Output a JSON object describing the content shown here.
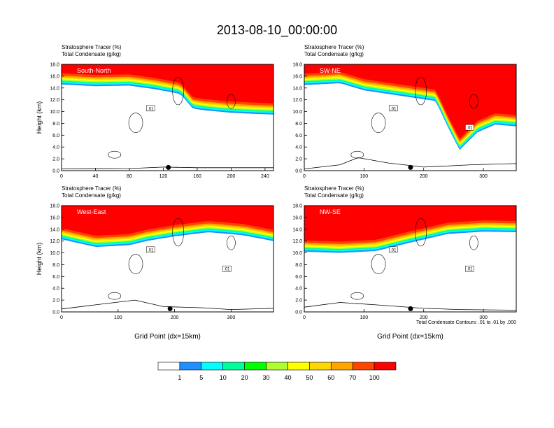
{
  "figure": {
    "title": "2013-08-10_00:00:00",
    "contour_info": "Total Condensate Contours: .01 to .01 by .000"
  },
  "colors": {
    "scale": [
      "#ffffff",
      "#1e90ff",
      "#00ffff",
      "#00ff99",
      "#00ff00",
      "#adff2f",
      "#ffff00",
      "#ffd700",
      "#ffa500",
      "#ff4500",
      "#ff0000"
    ]
  },
  "colorbar": {
    "labels": [
      "1",
      "5",
      "10",
      "20",
      "30",
      "40",
      "50",
      "60",
      "70",
      "100"
    ]
  },
  "chart_data": [
    {
      "type": "heatmap",
      "label": "South-North",
      "title_line1": "Stratosphere Tracer   (%)",
      "title_line2": "Total Condensate   (g/kg)",
      "ylabel": "Height (km)",
      "xlim": [
        0,
        250
      ],
      "ylim": [
        0,
        18
      ],
      "xticks": [
        0,
        40,
        80,
        120,
        160,
        200,
        240
      ],
      "yticks": [
        "0.0",
        "2.0",
        "4.0",
        "6.0",
        "8.0",
        "10.0",
        "12.0",
        "14.0",
        "16.0",
        "18.0"
      ],
      "tropopause_km": [
        [
          0,
          14.6
        ],
        [
          40,
          14.3
        ],
        [
          80,
          14.4
        ],
        [
          110,
          13.8
        ],
        [
          140,
          13.0
        ],
        [
          155,
          10.5
        ],
        [
          170,
          10.2
        ],
        [
          200,
          9.8
        ],
        [
          230,
          9.6
        ],
        [
          250,
          9.5
        ]
      ],
      "contour_labels": [
        ".01"
      ],
      "terrain_km": [
        [
          0,
          0.3
        ],
        [
          80,
          0.35
        ],
        [
          120,
          0.6
        ],
        [
          160,
          0.5
        ],
        [
          250,
          0.5
        ]
      ],
      "marker_x": 126
    },
    {
      "type": "heatmap",
      "label": "SW-NE",
      "title_line1": "Stratosphere Tracer   (%)",
      "title_line2": "Total Condensate   (g/kg)",
      "ylabel": "",
      "xlim": [
        0,
        355
      ],
      "ylim": [
        0,
        18
      ],
      "xticks": [
        0,
        100,
        200,
        300
      ],
      "yticks": [
        "0.0",
        "2.0",
        "4.0",
        "6.0",
        "8.0",
        "10.0",
        "12.0",
        "14.0",
        "16.0",
        "18.0"
      ],
      "tropopause_km": [
        [
          0,
          14.5
        ],
        [
          60,
          14.8
        ],
        [
          100,
          13.6
        ],
        [
          160,
          12.7
        ],
        [
          220,
          11.8
        ],
        [
          240,
          7.5
        ],
        [
          260,
          3.5
        ],
        [
          290,
          6.5
        ],
        [
          320,
          7.8
        ],
        [
          355,
          7.5
        ]
      ],
      "contour_labels": [
        ".01",
        ".01"
      ],
      "terrain_km": [
        [
          0,
          0.3
        ],
        [
          60,
          1.0
        ],
        [
          90,
          2.2
        ],
        [
          140,
          1.3
        ],
        [
          200,
          0.6
        ],
        [
          280,
          1.0
        ],
        [
          355,
          1.2
        ]
      ],
      "marker_x": 178
    },
    {
      "type": "heatmap",
      "label": "West-East",
      "title_line1": "Stratosphere Tracer   (%)",
      "title_line2": "Total Condensate   (g/kg)",
      "ylabel": "Height (km)",
      "xlabel": "Grid Point (dx=15km)",
      "xlim": [
        0,
        375
      ],
      "ylim": [
        0,
        18
      ],
      "xticks": [
        0,
        100,
        200,
        300
      ],
      "yticks": [
        "0.0",
        "2.0",
        "4.0",
        "6.0",
        "8.0",
        "10.0",
        "12.0",
        "14.0",
        "16.0",
        "18.0"
      ],
      "tropopause_km": [
        [
          0,
          12.3
        ],
        [
          60,
          11.0
        ],
        [
          120,
          11.3
        ],
        [
          150,
          12.0
        ],
        [
          200,
          12.8
        ],
        [
          260,
          13.5
        ],
        [
          320,
          13.0
        ],
        [
          375,
          12.0
        ]
      ],
      "contour_labels": [
        ".01",
        ".01"
      ],
      "terrain_km": [
        [
          0,
          0.5
        ],
        [
          60,
          1.2
        ],
        [
          130,
          2.0
        ],
        [
          180,
          0.9
        ],
        [
          250,
          0.7
        ],
        [
          300,
          0.4
        ],
        [
          375,
          0.6
        ]
      ],
      "marker_x": 192
    },
    {
      "type": "heatmap",
      "label": "NW-SE",
      "title_line1": "Stratosphere Tracer   (%)",
      "title_line2": "Total Condensate   (g/kg)",
      "ylabel": "",
      "xlabel": "Grid Point (dx=15km)",
      "xlim": [
        0,
        355
      ],
      "ylim": [
        0,
        18
      ],
      "xticks": [
        0,
        100,
        200,
        300
      ],
      "yticks": [
        "0.0",
        "2.0",
        "4.0",
        "6.0",
        "8.0",
        "10.0",
        "12.0",
        "14.0",
        "16.0",
        "18.0"
      ],
      "tropopause_km": [
        [
          0,
          10.2
        ],
        [
          60,
          10.0
        ],
        [
          120,
          10.3
        ],
        [
          180,
          11.8
        ],
        [
          240,
          13.2
        ],
        [
          300,
          13.6
        ],
        [
          355,
          13.5
        ]
      ],
      "contour_labels": [
        ".01",
        ".01"
      ],
      "terrain_km": [
        [
          0,
          0.8
        ],
        [
          60,
          1.6
        ],
        [
          120,
          1.2
        ],
        [
          200,
          0.6
        ],
        [
          260,
          0.4
        ],
        [
          355,
          0.3
        ]
      ],
      "marker_x": 178
    }
  ]
}
